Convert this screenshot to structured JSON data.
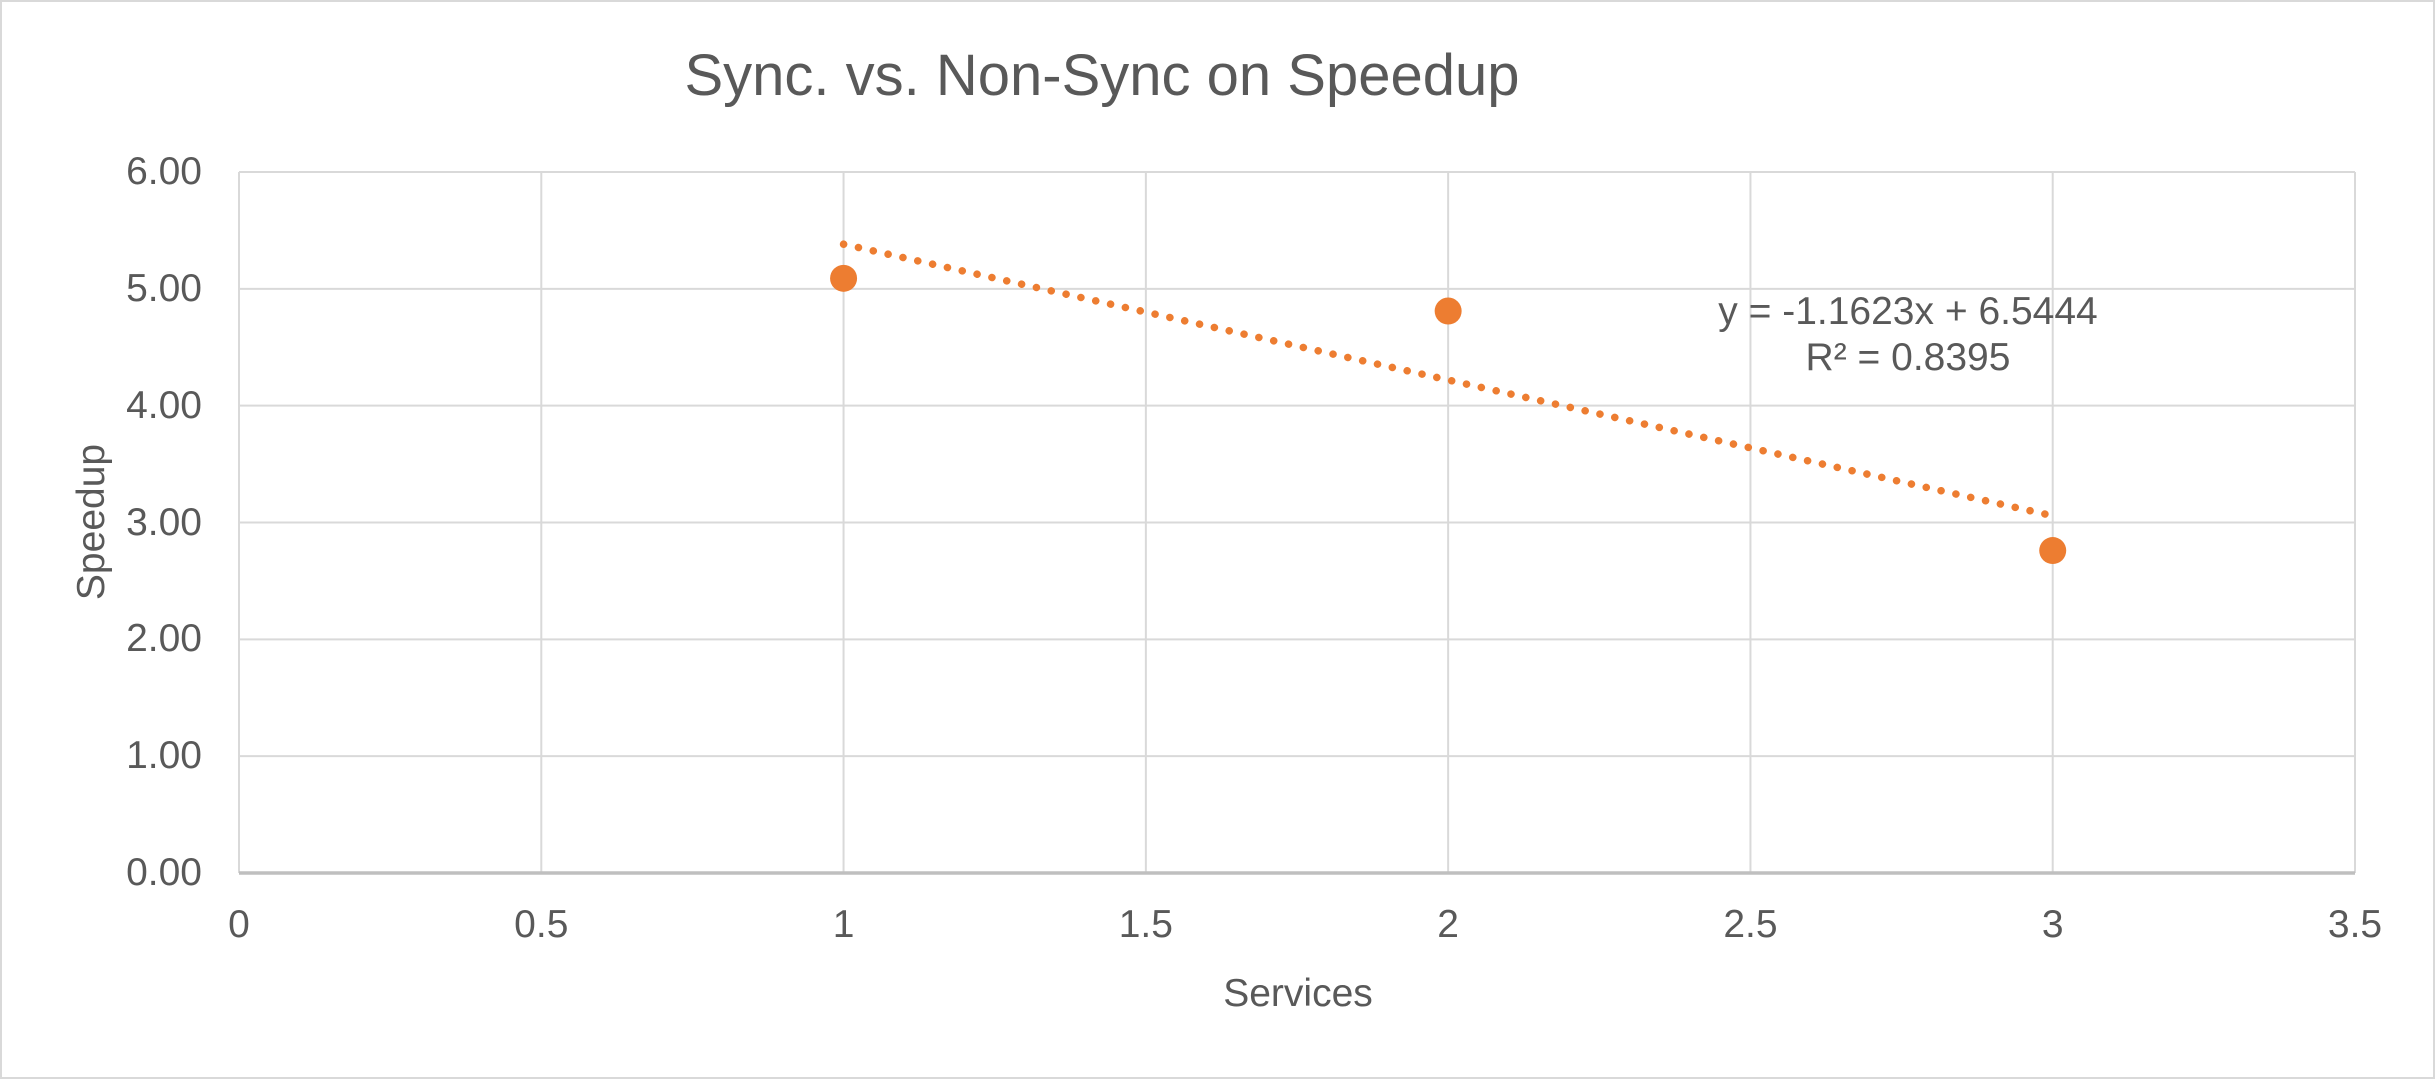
{
  "chart": {
    "title": "Sync. vs. Non-Sync on Speedup",
    "xlabel": "Services",
    "ylabel": "Speedup"
  },
  "chart_data": {
    "type": "scatter",
    "title": "Sync. vs. Non-Sync on Speedup",
    "xlabel": "Services",
    "ylabel": "Speedup",
    "series": [
      {
        "name": "Speedup",
        "points": [
          {
            "x": 1,
            "y": 5.09
          },
          {
            "x": 2,
            "y": 4.81
          },
          {
            "x": 3,
            "y": 2.76
          }
        ]
      }
    ],
    "trendline": {
      "style": "dotted",
      "slope": -1.1623,
      "intercept": 6.5444,
      "x_start": 1,
      "x_end": 3,
      "equation_label": "y = -1.1623x + 6.5444",
      "r2_label": "R² = 0.8395",
      "r2": 0.8395
    },
    "xlim": [
      0,
      3.5
    ],
    "ylim": [
      0,
      6
    ],
    "x_ticks": [
      "0",
      "0.5",
      "1",
      "1.5",
      "2",
      "2.5",
      "3",
      "3.5"
    ],
    "y_ticks": [
      "0.00",
      "1.00",
      "2.00",
      "3.00",
      "4.00",
      "5.00",
      "6.00"
    ],
    "grid": true,
    "legend": "none",
    "colors": {
      "marker": "#ED7D31",
      "trendline": "#ED7D31",
      "gridline": "#D9D9D9",
      "axis_line": "#BFBFBF",
      "text": "#595959",
      "border": "#D9D9D9",
      "background": "#FFFFFF"
    }
  }
}
